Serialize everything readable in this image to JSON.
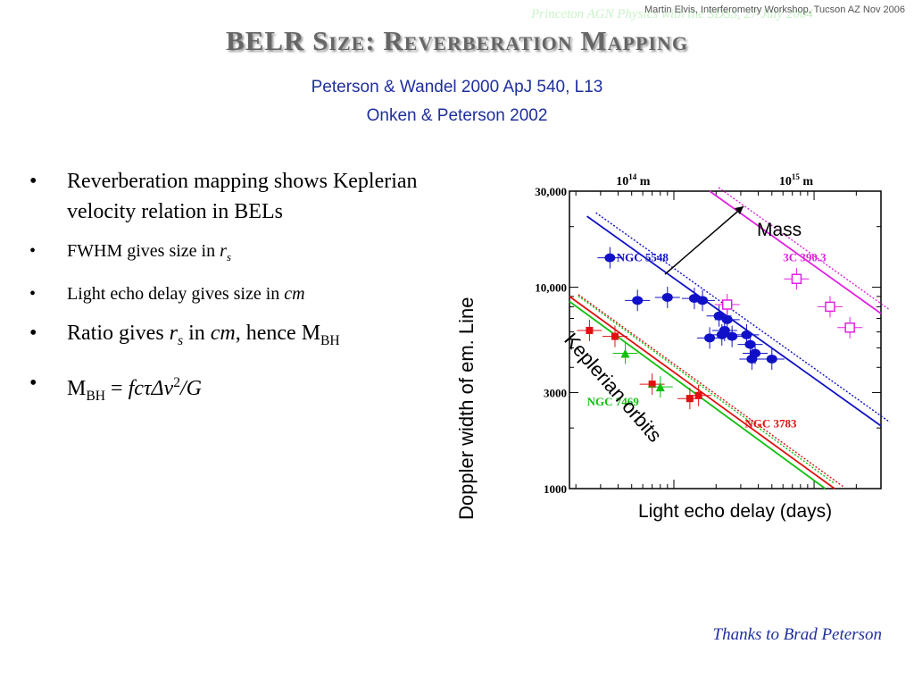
{
  "slide": {
    "watermark": "Princeton AGN Physics with the SDSS, 27 July 2004",
    "credit": "Martin Elvis, Interferometry Workshop, Tucson AZ Nov 2006",
    "title": "BELR Size: Reverberation Mapping",
    "refs": [
      "Peterson & Wandel 2000 ApJ 540, L13",
      "Onken & Peterson 2002"
    ],
    "bullets": {
      "b1": "Reverberation mapping shows Keplerian velocity relation in BELs",
      "b2_text": "FWHM gives size in ",
      "b2_var": "r",
      "b2_sub": "s",
      "b3_text": "Light echo delay gives size in ",
      "b3_var": "cm",
      "b4_a": "Ratio gives ",
      "b4_var": "r",
      "b4_sub": "s",
      "b4_b": " in ",
      "b4_cm": "cm",
      "b4_c": ", hence M",
      "b4_sub2": "BH",
      "b5_m": "M",
      "b5_sub": "BH",
      "b5_eq": " = ",
      "b5_f": "fcτΔv",
      "b5_sup": "2",
      "b5_g": "/G"
    },
    "thanks": "Thanks to Brad Peterson"
  },
  "chart_data": {
    "type": "scatter",
    "xlabel": "Light echo delay (days)",
    "ylabel": "Doppler width of em. Line",
    "x_scale": "log",
    "y_scale": "log",
    "ylim": [
      1000,
      30000
    ],
    "yticks": [
      "30,000",
      "10,000",
      "3000",
      "1000"
    ],
    "top_axis_labels": [
      {
        "base": "10",
        "exp": "14",
        "unit": " m"
      },
      {
        "base": "10",
        "exp": "15",
        "unit": " m"
      }
    ],
    "annotations": [
      "Mass",
      "Keplerian orbits"
    ],
    "series": [
      {
        "name": "NGC 5548",
        "color": "#1010c8",
        "marker": "circle",
        "points": [
          [
            3.5,
            14000
          ],
          [
            5.5,
            8600
          ],
          [
            9,
            8900
          ],
          [
            14,
            8800
          ],
          [
            16,
            8600
          ],
          [
            21,
            7200
          ],
          [
            24,
            6900
          ],
          [
            23,
            6100
          ],
          [
            22,
            5800
          ],
          [
            18,
            5600
          ],
          [
            26,
            5700
          ],
          [
            33,
            5800
          ],
          [
            35,
            5200
          ],
          [
            38,
            4700
          ],
          [
            36,
            4400
          ],
          [
            50,
            4400
          ]
        ]
      },
      {
        "name": "3C 390.3",
        "color": "#e020e0",
        "marker": "square-open",
        "points": [
          [
            24,
            8200
          ],
          [
            75,
            11000
          ],
          [
            130,
            8000
          ],
          [
            180,
            6300
          ]
        ]
      },
      {
        "name": "NGC 3783",
        "color": "#e01010",
        "marker": "square",
        "points": [
          [
            2.5,
            6100
          ],
          [
            3.8,
            5700
          ],
          [
            7,
            3300
          ],
          [
            13,
            2800
          ],
          [
            15,
            2900
          ]
        ]
      },
      {
        "name": "NGC 7469",
        "color": "#10c010",
        "marker": "triangle",
        "points": [
          [
            4.5,
            4700
          ],
          [
            8,
            3200
          ]
        ]
      }
    ]
  }
}
